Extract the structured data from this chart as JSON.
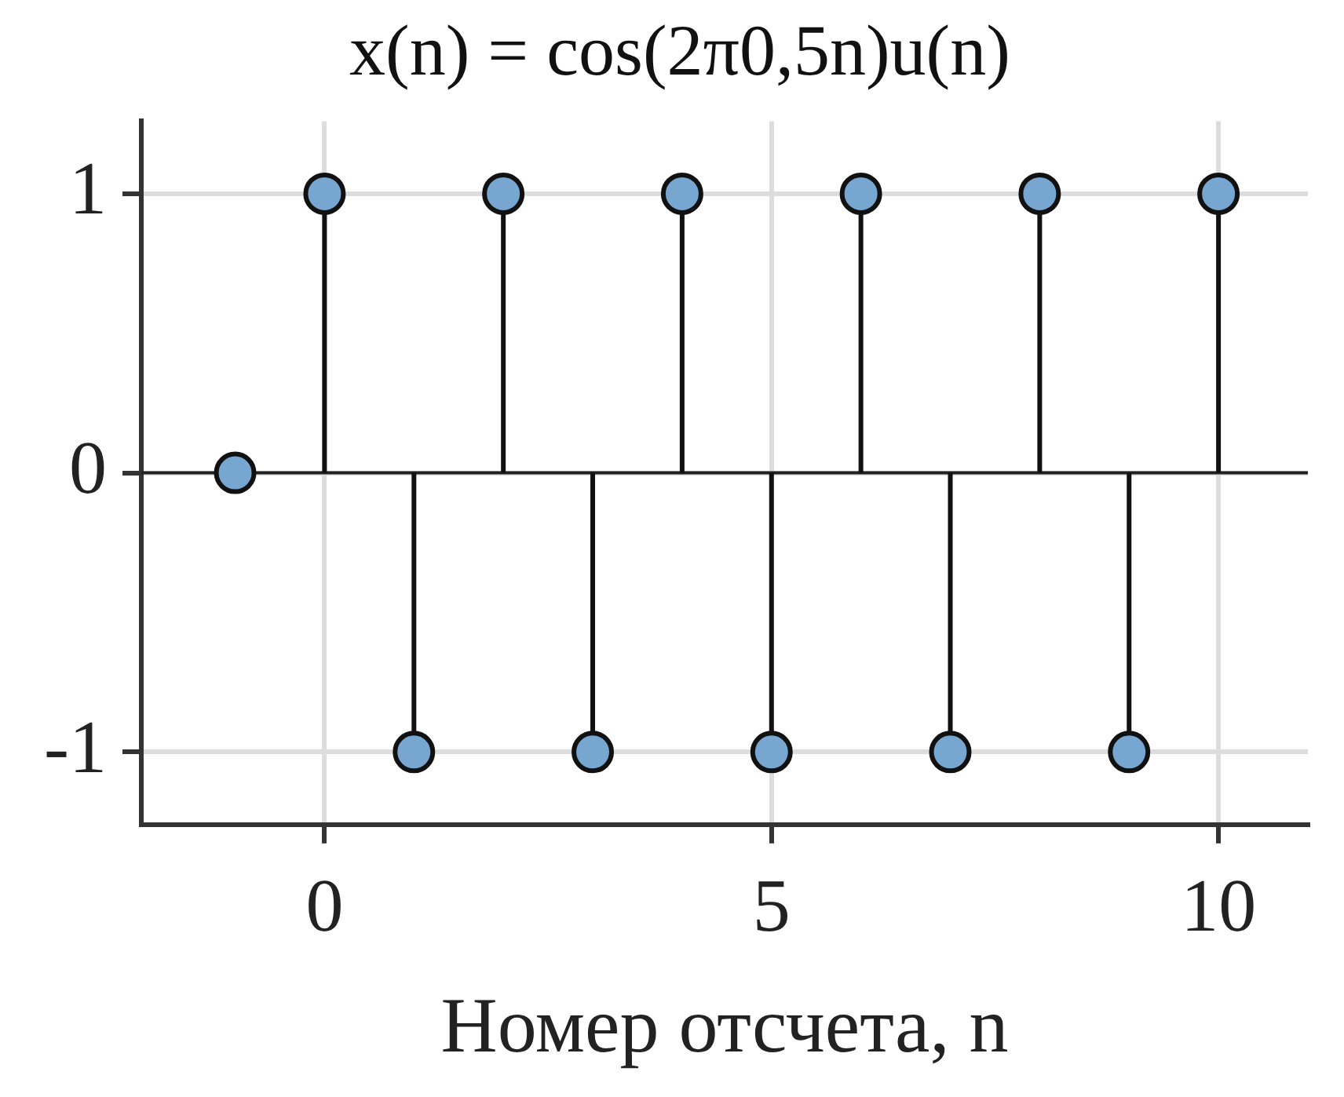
{
  "chart_data": {
    "type": "lollipop",
    "title": "x(n) = cos(2π0,5n)u(n)",
    "xlabel": "Номер отсчета, n",
    "x": [
      -1,
      0,
      1,
      2,
      3,
      4,
      5,
      6,
      7,
      8,
      9,
      10
    ],
    "series": [
      {
        "color": "#77a6d0",
        "values": [
          0,
          1,
          -1,
          1,
          -1,
          1,
          -1,
          1,
          -1,
          1,
          -1,
          1
        ]
      }
    ],
    "xlim": [
      -2.05,
      11
    ],
    "xticks": [
      0,
      5,
      10
    ],
    "ylim": [
      -1.26,
      1.26
    ],
    "yticks": [
      -1,
      0,
      1
    ],
    "ref_lines": [
      {
        "axis": "y",
        "value": 0,
        "color": "#222222"
      }
    ],
    "grid": true,
    "marker": "circle",
    "legend": false
  }
}
